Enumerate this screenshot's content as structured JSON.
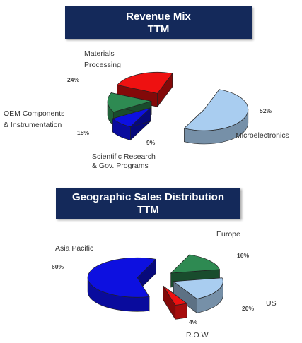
{
  "chart_data": [
    {
      "type": "pie",
      "title": [
        "Revenue Mix",
        "TTM"
      ],
      "slices": [
        {
          "label": "Microelectronics",
          "value": 52,
          "value_label": "52%",
          "color": "#a9cdf0"
        },
        {
          "label": "Scientific Research & Gov. Programs",
          "label_lines": [
            "Scientific Research",
            "& Gov. Programs"
          ],
          "value": 9,
          "value_label": "9%",
          "color": "#0d10e0"
        },
        {
          "label": "OEM Components & Instrumentation",
          "label_lines": [
            "OEM Components",
            "& Instrumentation"
          ],
          "value": 15,
          "value_label": "15%",
          "color": "#2e8a52"
        },
        {
          "label": "Materials Processing",
          "label_lines": [
            "Materials",
            "Processing"
          ],
          "value": 24,
          "value_label": "24%",
          "color": "#ee1111"
        }
      ]
    },
    {
      "type": "pie",
      "title": [
        "Geographic Sales Distribution",
        "TTM"
      ],
      "slices": [
        {
          "label": "Europe",
          "value": 16,
          "value_label": "16%",
          "color": "#2e8a52"
        },
        {
          "label": "US",
          "value": 20,
          "value_label": "20%",
          "color": "#a9cdf0"
        },
        {
          "label": "R.O.W.",
          "value": 4,
          "value_label": "4%",
          "color": "#ee1111"
        },
        {
          "label": "Asia Pacific",
          "value": 60,
          "value_label": "60%",
          "color": "#0d10e0"
        }
      ]
    }
  ]
}
